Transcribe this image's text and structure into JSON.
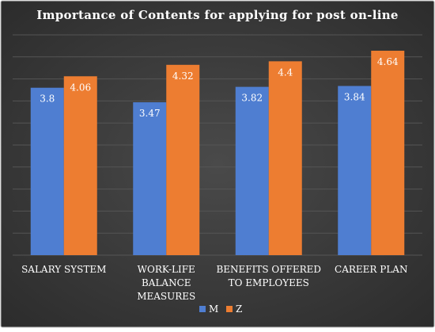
{
  "chart_data": {
    "type": "bar",
    "title": "Importance of Contents for applying for post on-line",
    "categories": [
      [
        "SALARY SYSTEM"
      ],
      [
        "WORK-LIFE",
        "BALANCE",
        "MEASURES"
      ],
      [
        "BENEFITS OFFERED",
        "TO EMPLOYEES"
      ],
      [
        "CAREER PLAN"
      ]
    ],
    "series": [
      {
        "name": "M",
        "values": [
          3.8,
          3.47,
          3.82,
          3.84
        ],
        "labels": [
          "3.8",
          "3.47",
          "3.82",
          "3.84"
        ],
        "color": "#4f7ed1"
      },
      {
        "name": "Z",
        "values": [
          4.06,
          4.32,
          4.4,
          4.64
        ],
        "labels": [
          "4.06",
          "4.32",
          "4.4",
          "4.64"
        ],
        "color": "#ed7d31"
      }
    ],
    "ylim": [
      0,
      5
    ],
    "grid": true,
    "legend_position": "bottom"
  },
  "colors": {
    "background": "#3e3e3e",
    "gridline": "#555555",
    "text": "#ffffff"
  }
}
